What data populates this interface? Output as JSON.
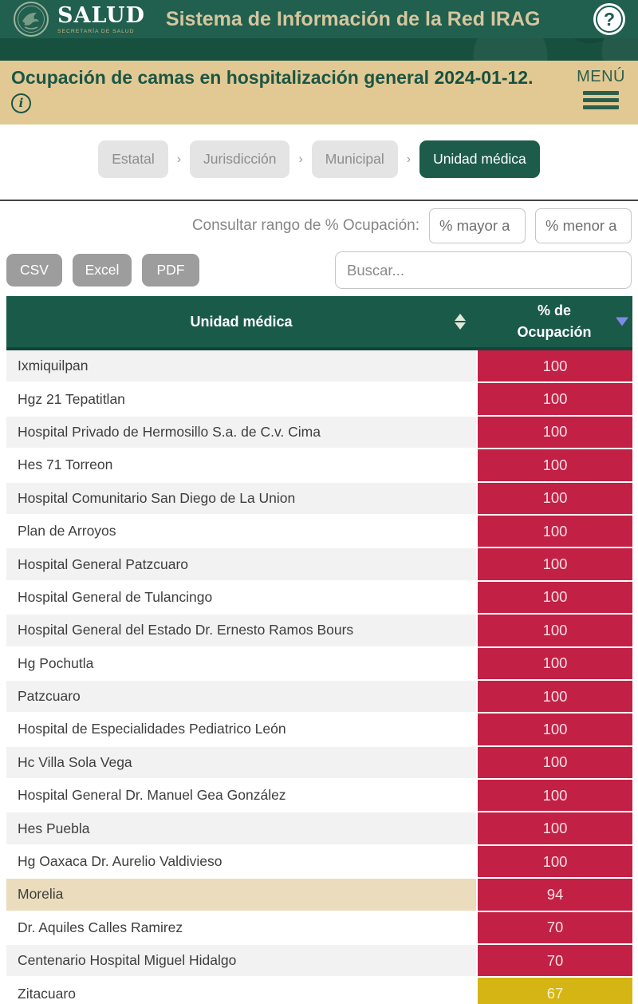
{
  "app": {
    "brand": "SALUD",
    "brand_sub": "SECRETARÍA DE SALUD",
    "title": "Sistema de Información de la Red IRAG"
  },
  "subheader": {
    "title": "Ocupación de camas en hospitalización general",
    "date": "2024-01-12.",
    "menu_label": "MENÚ"
  },
  "breadcrumb": {
    "separator": "›",
    "items": [
      {
        "label": "Estatal",
        "active": false
      },
      {
        "label": "Jurisdicción",
        "active": false
      },
      {
        "label": "Municipal",
        "active": false
      },
      {
        "label": "Unidad médica",
        "active": true
      }
    ]
  },
  "filters": {
    "range_label": "Consultar rango de % Ocupación:",
    "min_placeholder": "% mayor a",
    "max_placeholder": "% menor a",
    "search_placeholder": "Buscar...",
    "export_buttons": [
      "CSV",
      "Excel",
      "PDF"
    ]
  },
  "table": {
    "columns": [
      {
        "label": "Unidad médica"
      },
      {
        "label": "% de Ocupación"
      }
    ],
    "rows": [
      {
        "name": "Ixmiquilpan",
        "value": "100",
        "level": "red"
      },
      {
        "name": "Hgz 21 Tepatitlan",
        "value": "100",
        "level": "red"
      },
      {
        "name": "Hospital Privado de Hermosillo S.a. de C.v. Cima",
        "value": "100",
        "level": "red"
      },
      {
        "name": "Hes 71 Torreon",
        "value": "100",
        "level": "red"
      },
      {
        "name": "Hospital Comunitario San Diego de La Union",
        "value": "100",
        "level": "red"
      },
      {
        "name": "Plan de Arroyos",
        "value": "100",
        "level": "red"
      },
      {
        "name": "Hospital General Patzcuaro",
        "value": "100",
        "level": "red"
      },
      {
        "name": "Hospital General de Tulancingo",
        "value": "100",
        "level": "red"
      },
      {
        "name": "Hospital General del Estado Dr. Ernesto Ramos Bours",
        "value": "100",
        "level": "red"
      },
      {
        "name": "Hg Pochutla",
        "value": "100",
        "level": "red"
      },
      {
        "name": "Patzcuaro",
        "value": "100",
        "level": "red"
      },
      {
        "name": "Hospital de Especialidades Pediatrico León",
        "value": "100",
        "level": "red"
      },
      {
        "name": "Hc Villa Sola Vega",
        "value": "100",
        "level": "red"
      },
      {
        "name": "Hospital General Dr. Manuel Gea González",
        "value": "100",
        "level": "red"
      },
      {
        "name": "Hes Puebla",
        "value": "100",
        "level": "red"
      },
      {
        "name": "Hg Oaxaca Dr. Aurelio Valdivieso",
        "value": "100",
        "level": "red"
      },
      {
        "name": "Morelia",
        "value": "94",
        "level": "red",
        "highlight": true
      },
      {
        "name": "Dr. Aquiles Calles Ramirez",
        "value": "70",
        "level": "red"
      },
      {
        "name": "Centenario Hospital Miguel Hidalgo",
        "value": "70",
        "level": "red"
      },
      {
        "name": "Zitacuaro",
        "value": "67",
        "level": "yellow"
      }
    ]
  },
  "colors": {
    "header_green": "#1e5e4d",
    "header_green_dark": "#17503f",
    "tan_bar": "#e2c994",
    "table_header_green": "#1a5a49",
    "cell_red": "#c32046",
    "cell_yellow": "#d5b513",
    "row_highlight_tan": "#eadcbc",
    "sort_arrow_blue": "#7d8be8"
  }
}
